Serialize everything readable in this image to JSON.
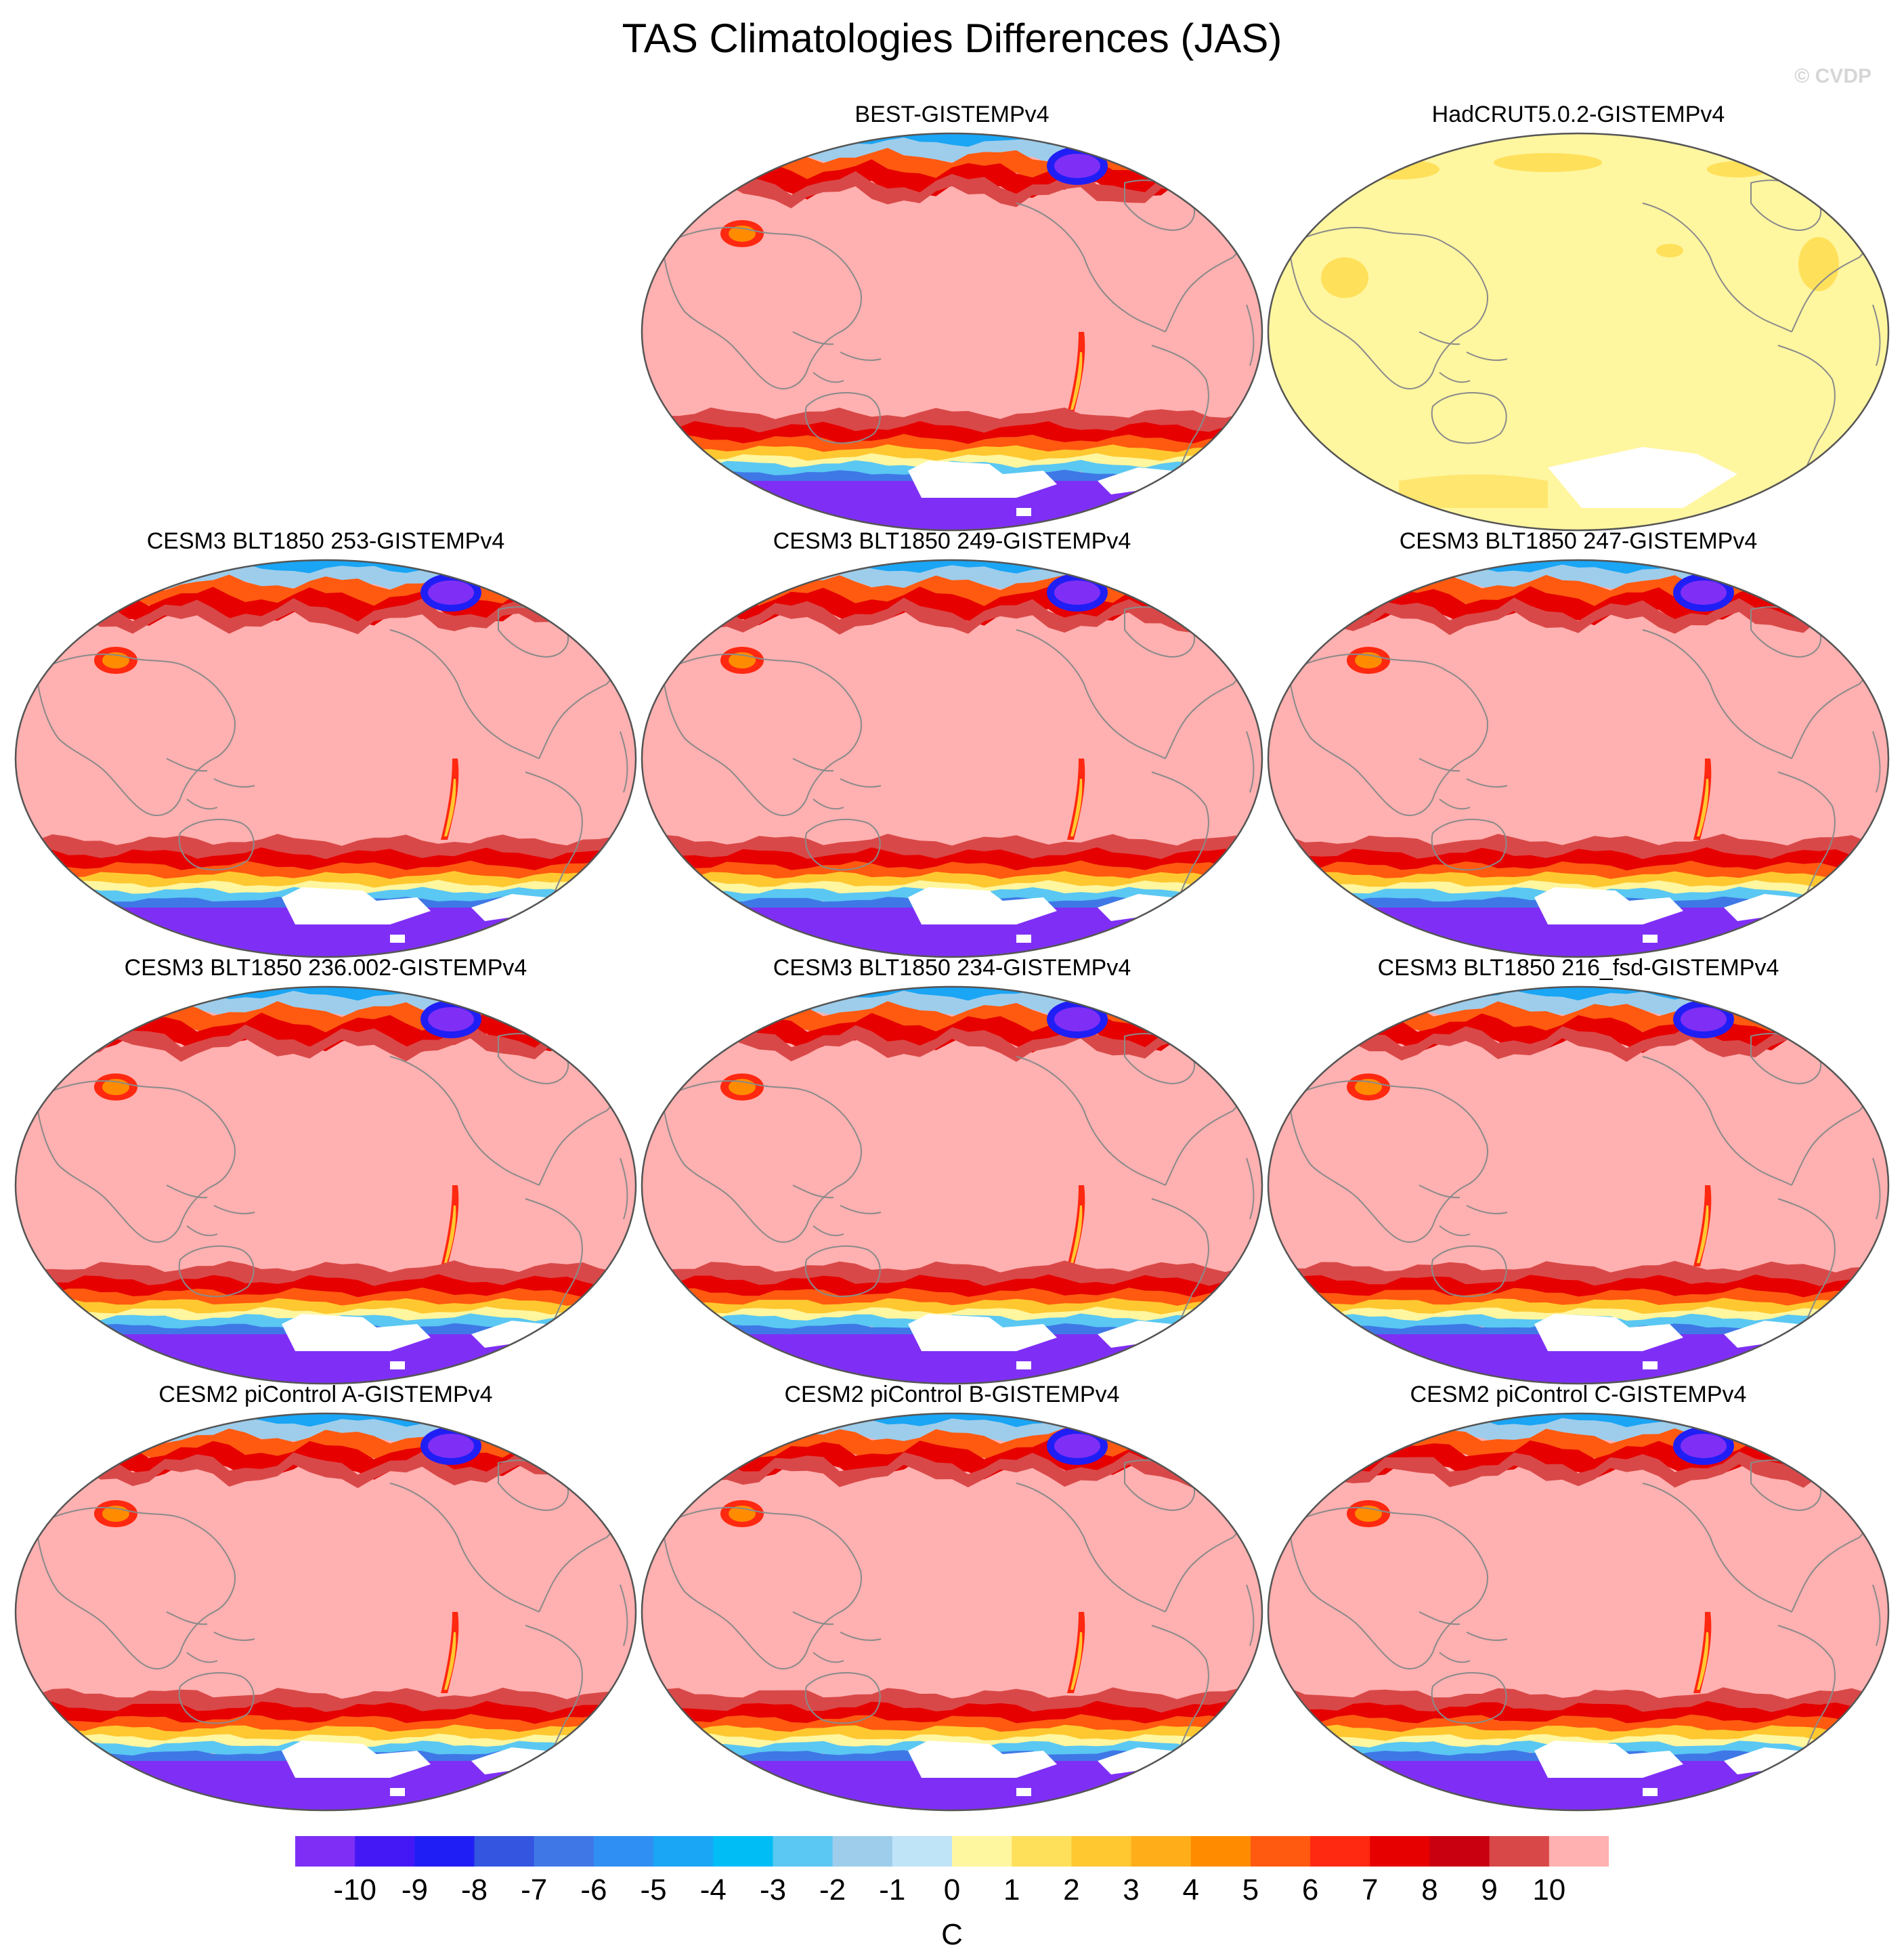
{
  "title": "TAS Climatologies Differences (JAS)",
  "copyright": "© CVDP",
  "panels": [
    {
      "label": "",
      "style": "empty"
    },
    {
      "label": "BEST-GISTEMPv4",
      "style": "best"
    },
    {
      "label": "HadCRUT5.0.2-GISTEMPv4",
      "style": "hadcrut"
    },
    {
      "label": "CESM3 BLT1850 253-GISTEMPv4",
      "style": "model"
    },
    {
      "label": "CESM3 BLT1850 249-GISTEMPv4",
      "style": "model"
    },
    {
      "label": "CESM3 BLT1850 247-GISTEMPv4",
      "style": "model"
    },
    {
      "label": "CESM3 BLT1850 236.002-GISTEMPv4",
      "style": "model"
    },
    {
      "label": "CESM3 BLT1850 234-GISTEMPv4",
      "style": "model"
    },
    {
      "label": "CESM3 BLT1850 216_fsd-GISTEMPv4",
      "style": "model"
    },
    {
      "label": "CESM2 piControl A-GISTEMPv4",
      "style": "model"
    },
    {
      "label": "CESM2 piControl B-GISTEMPv4",
      "style": "model"
    },
    {
      "label": "CESM2 piControl C-GISTEMPv4",
      "style": "model"
    }
  ],
  "colorbar": {
    "unit": "C",
    "tick_labels": [
      "-10",
      "-9",
      "-8",
      "-7",
      "-6",
      "-5",
      "-4",
      "-3",
      "-2",
      "-1",
      "0",
      "1",
      "2",
      "3",
      "4",
      "5",
      "6",
      "7",
      "8",
      "9",
      "10"
    ],
    "colors": [
      "#7f2ff5",
      "#4418f5",
      "#1f1ff5",
      "#3355e0",
      "#3f78e6",
      "#2f8ff2",
      "#1aa5f5",
      "#00bef5",
      "#5ac8f2",
      "#9ecdeb",
      "#bfe3f7",
      "#fff6a0",
      "#ffe05a",
      "#ffc830",
      "#ffae1a",
      "#ff8c00",
      "#ff5a10",
      "#ff2810",
      "#e60000",
      "#c80010",
      "#d94848",
      "#ffb0b0"
    ]
  },
  "map_colors": {
    "land_outline": "#8a8a8a",
    "frame": "#555555",
    "warm_bg": "#ffb0b0",
    "neutral_bg": "#fff6a0",
    "missing": "#ffffff"
  }
}
